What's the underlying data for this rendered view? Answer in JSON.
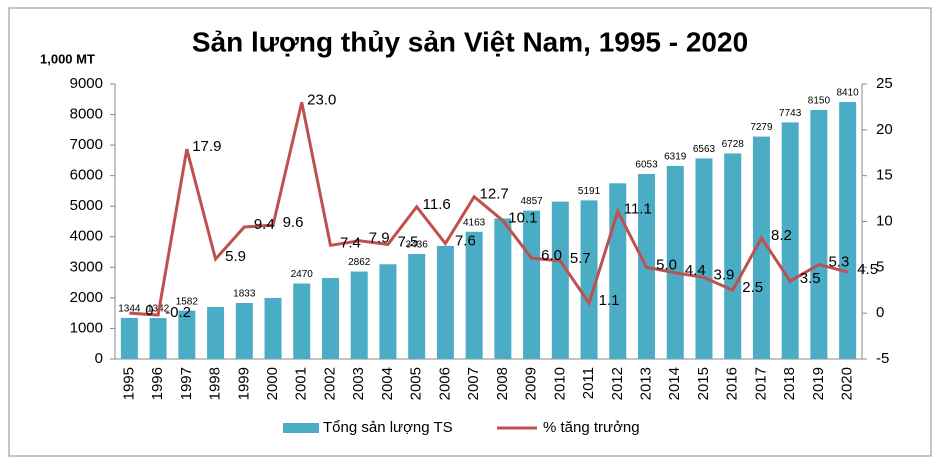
{
  "chart_data": {
    "type": "bar-line",
    "title": "Sản lượng thủy sản Việt Nam, 1995 - 2020",
    "y_unit_label": "1,000 MT",
    "categories": [
      "1995",
      "1996",
      "1997",
      "1998",
      "1999",
      "2000",
      "2001",
      "2002",
      "2003",
      "2004",
      "2005",
      "2006",
      "2007",
      "2008",
      "2009",
      "2010",
      "2011",
      "2012",
      "2013",
      "2014",
      "2015",
      "2016",
      "2017",
      "2018",
      "2019",
      "2020"
    ],
    "series": [
      {
        "name": "Tổng sản lượng TS",
        "type": "bar",
        "color": "#4bacc6",
        "values": [
          1344,
          1342,
          1582,
          1700,
          1833,
          2000,
          2470,
          2650,
          2862,
          3100,
          3436,
          3700,
          4163,
          4600,
          4857,
          5150,
          5191,
          5750,
          6053,
          6319,
          6563,
          6728,
          7279,
          7743,
          8150,
          8410
        ],
        "value_labels": [
          "1344",
          "1342",
          "1582",
          null,
          "1833",
          null,
          "2470",
          null,
          "2862",
          null,
          "3436",
          null,
          "4163",
          null,
          "4857",
          null,
          "5191",
          null,
          "6053",
          "6319",
          "6563",
          "6728",
          "7279",
          "7743",
          "8150",
          "8410"
        ]
      },
      {
        "name": "% tăng trưởng",
        "type": "line",
        "axis": "y2",
        "color": "#c0504d",
        "values": [
          0,
          -0.2,
          17.9,
          5.9,
          9.4,
          9.6,
          23.0,
          7.4,
          7.9,
          7.5,
          11.6,
          7.6,
          12.7,
          10.1,
          6.0,
          5.7,
          1.1,
          11.1,
          5.0,
          4.4,
          3.9,
          2.5,
          8.2,
          3.5,
          5.3,
          4.5
        ],
        "value_labels": [
          "0",
          "-0.2",
          "17.9",
          "5.9",
          "9.4",
          "9.6",
          "23.0",
          "7.4",
          "7.9",
          "7.5",
          "11.6",
          "7.6",
          "12.7",
          "10.1",
          "6.0",
          "5.7",
          "1.1",
          "11.1",
          "5.0",
          "4.4",
          "3.9",
          "2.5",
          "8.2",
          "3.5",
          "5.3",
          "4.5"
        ]
      }
    ],
    "ylim": [
      0,
      9000
    ],
    "yticks": [
      0,
      1000,
      2000,
      3000,
      4000,
      5000,
      6000,
      7000,
      8000,
      9000
    ],
    "y2lim": [
      -5,
      25
    ],
    "y2ticks": [
      -5,
      0,
      5,
      10,
      15,
      20,
      25
    ],
    "legend": "bottom",
    "grid": false
  }
}
